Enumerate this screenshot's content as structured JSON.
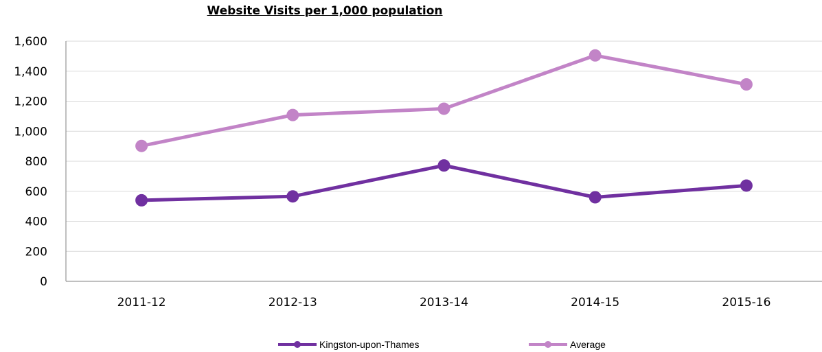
{
  "chart_data": {
    "type": "line",
    "title": "Website Visits per 1,000 population",
    "categories": [
      "2011-12",
      "2012-13",
      "2013-14",
      "2014-15",
      "2015-16"
    ],
    "series": [
      {
        "name": "Kingston-upon-Thames",
        "values": [
          540,
          566,
          772,
          560,
          638
        ],
        "color": "#7030a0"
      },
      {
        "name": "Average",
        "values": [
          902,
          1108,
          1150,
          1505,
          1312
        ],
        "color": "#c284c7"
      }
    ],
    "ylim": [
      0,
      1600
    ],
    "yticks": [
      0,
      200,
      400,
      600,
      800,
      1000,
      1200,
      1400,
      1600
    ],
    "ytick_labels": [
      "0",
      "200",
      "400",
      "600",
      "800",
      "1,000",
      "1,200",
      "1,400",
      "1,600"
    ],
    "grid": true,
    "legend_position": "bottom"
  }
}
